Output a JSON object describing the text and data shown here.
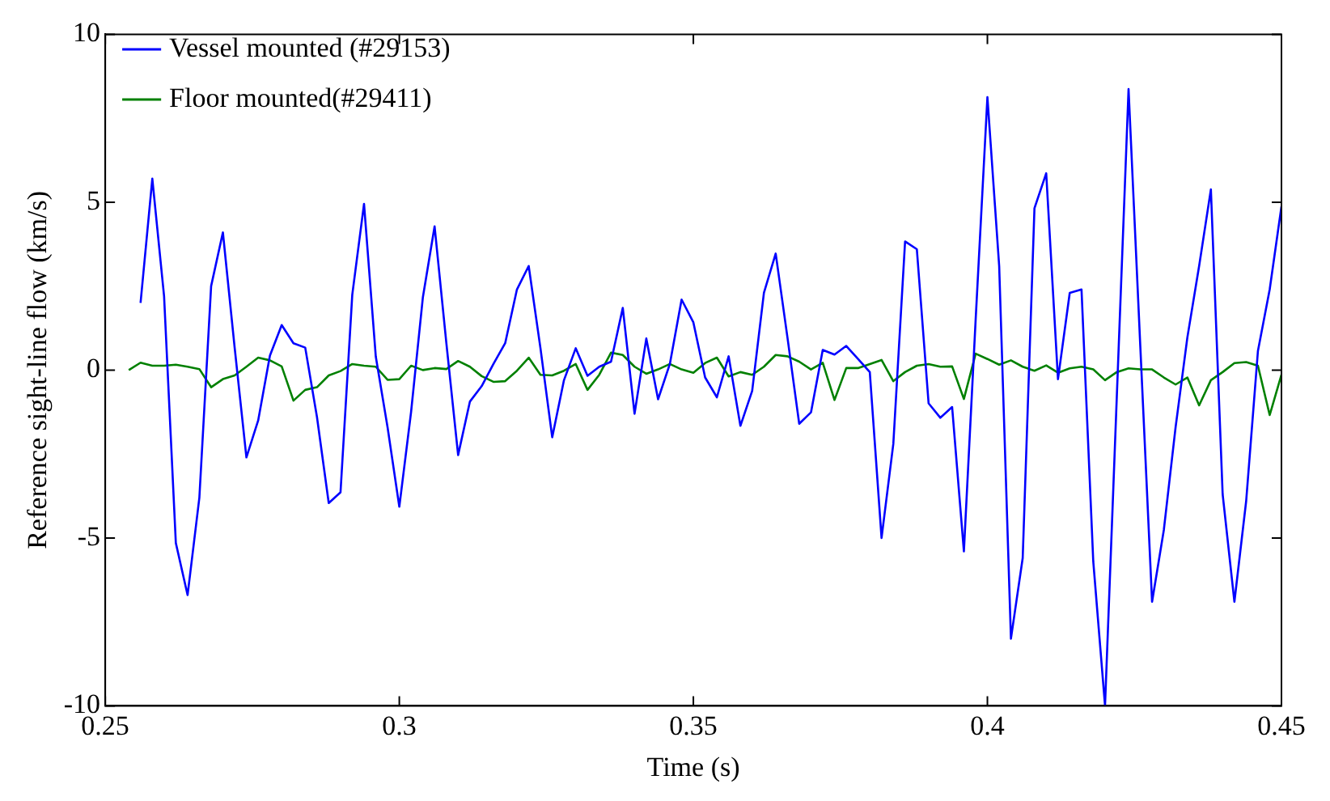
{
  "chart_data": {
    "type": "line",
    "xlabel": "Time (s)",
    "ylabel": "Reference sight-line flow (km/s)",
    "xlim": [
      0.25,
      0.45
    ],
    "xticks": [
      0.25,
      0.3,
      0.35,
      0.4,
      0.45
    ],
    "ylim": [
      -10,
      10
    ],
    "yticks": [
      -10,
      -5,
      0,
      5,
      10
    ],
    "legend": "top left",
    "marker": "none",
    "line_style": "solid",
    "series": [
      {
        "name": "Vessel mounted (#29153)",
        "color": "#0000ff",
        "x": [
          0.256,
          0.258,
          0.26,
          0.262,
          0.264,
          0.266,
          0.268,
          0.27,
          0.272,
          0.274,
          0.276,
          0.278,
          0.28,
          0.282,
          0.284,
          0.286,
          0.288,
          0.29,
          0.292,
          0.294,
          0.296,
          0.298,
          0.3,
          0.302,
          0.304,
          0.306,
          0.308,
          0.31,
          0.312,
          0.314,
          0.316,
          0.318,
          0.32,
          0.322,
          0.324,
          0.326,
          0.328,
          0.33,
          0.332,
          0.334,
          0.336,
          0.338,
          0.34,
          0.342,
          0.344,
          0.346,
          0.348,
          0.35,
          0.352,
          0.354,
          0.356,
          0.358,
          0.36,
          0.362,
          0.364,
          0.366,
          0.368,
          0.37,
          0.372,
          0.374,
          0.376,
          0.378,
          0.38,
          0.382,
          0.384,
          0.386,
          0.388,
          0.39,
          0.392,
          0.394,
          0.396,
          0.398,
          0.4,
          0.402,
          0.404,
          0.406,
          0.408,
          0.41,
          0.412,
          0.414,
          0.416,
          0.418,
          0.42,
          0.422,
          0.424,
          0.426,
          0.428,
          0.43,
          0.432,
          0.434,
          0.436,
          0.438,
          0.44,
          0.442,
          0.444,
          0.446,
          0.448,
          0.45
        ],
        "values": [
          2.0,
          5.7,
          2.2,
          -5.15,
          -6.7,
          -3.8,
          2.5,
          4.1,
          0.67,
          -2.6,
          -1.5,
          0.43,
          1.34,
          0.8,
          0.67,
          -1.4,
          -3.96,
          -3.64,
          2.24,
          4.95,
          0.4,
          -1.7,
          -4.07,
          -1.25,
          2.16,
          4.28,
          0.8,
          -2.53,
          -0.94,
          -0.48,
          0.18,
          0.8,
          2.4,
          3.1,
          0.65,
          -2.0,
          -0.3,
          0.65,
          -0.17,
          0.1,
          0.25,
          1.85,
          -1.3,
          0.94,
          -0.87,
          0.18,
          2.1,
          1.42,
          -0.22,
          -0.81,
          0.41,
          -1.66,
          -0.62,
          2.3,
          3.47,
          0.97,
          -1.6,
          -1.26,
          0.6,
          0.46,
          0.72,
          0.33,
          -0.06,
          -5.0,
          -2.2,
          3.83,
          3.6,
          -0.99,
          -1.42,
          -1.1,
          -5.4,
          1.5,
          8.13,
          3.1,
          -8.0,
          -5.6,
          4.82,
          5.86,
          -0.27,
          2.3,
          2.4,
          -5.7,
          -10.0,
          -0.8,
          8.37,
          0.7,
          -6.9,
          -4.76,
          -1.7,
          0.97,
          3.1,
          5.38,
          -3.7,
          -6.9,
          -3.9,
          0.57,
          2.4,
          4.87
        ]
      },
      {
        "name": "Floor mounted(#29411)",
        "color": "#008000",
        "x": [
          0.254,
          0.256,
          0.258,
          0.26,
          0.262,
          0.264,
          0.266,
          0.268,
          0.27,
          0.272,
          0.274,
          0.276,
          0.278,
          0.28,
          0.282,
          0.284,
          0.286,
          0.288,
          0.29,
          0.292,
          0.294,
          0.296,
          0.298,
          0.3,
          0.302,
          0.304,
          0.306,
          0.308,
          0.31,
          0.312,
          0.314,
          0.316,
          0.318,
          0.32,
          0.322,
          0.324,
          0.326,
          0.328,
          0.33,
          0.332,
          0.334,
          0.336,
          0.338,
          0.34,
          0.342,
          0.344,
          0.346,
          0.348,
          0.35,
          0.352,
          0.354,
          0.356,
          0.358,
          0.36,
          0.362,
          0.364,
          0.366,
          0.368,
          0.37,
          0.372,
          0.374,
          0.376,
          0.378,
          0.38,
          0.382,
          0.384,
          0.386,
          0.388,
          0.39,
          0.392,
          0.394,
          0.396,
          0.398,
          0.4,
          0.402,
          0.404,
          0.406,
          0.408,
          0.41,
          0.412,
          0.414,
          0.416,
          0.418,
          0.42,
          0.422,
          0.424,
          0.426,
          0.428,
          0.43,
          0.432,
          0.434,
          0.436,
          0.438,
          0.44,
          0.442,
          0.444,
          0.446,
          0.448,
          0.45
        ],
        "values": [
          0,
          0.22,
          0.13,
          0.13,
          0.16,
          0.1,
          0.03,
          -0.51,
          -0.27,
          -0.16,
          0.1,
          0.37,
          0.29,
          0.11,
          -0.91,
          -0.59,
          -0.51,
          -0.16,
          -0.03,
          0.18,
          0.13,
          0.1,
          -0.29,
          -0.27,
          0.13,
          0,
          0.06,
          0.03,
          0.27,
          0.1,
          -0.18,
          -0.35,
          -0.33,
          -0.02,
          0.37,
          -0.14,
          -0.16,
          -0.02,
          0.18,
          -0.59,
          -0.14,
          0.52,
          0.45,
          0.1,
          -0.11,
          0.02,
          0.18,
          0.02,
          -0.08,
          0.21,
          0.37,
          -0.19,
          -0.06,
          -0.14,
          0.1,
          0.45,
          0.41,
          0.25,
          0.02,
          0.22,
          -0.89,
          0.06,
          0.06,
          0.18,
          0.3,
          -0.33,
          -0.06,
          0.13,
          0.18,
          0.1,
          0.11,
          -0.86,
          0.49,
          0.33,
          0.16,
          0.29,
          0.1,
          -0.02,
          0.14,
          -0.08,
          0.05,
          0.1,
          0.02,
          -0.3,
          -0.06,
          0.05,
          0.02,
          0.02,
          -0.22,
          -0.43,
          -0.22,
          -1.05,
          -0.3,
          -0.06,
          0.21,
          0.24,
          0.13,
          -1.34,
          -0.14
        ]
      }
    ]
  }
}
